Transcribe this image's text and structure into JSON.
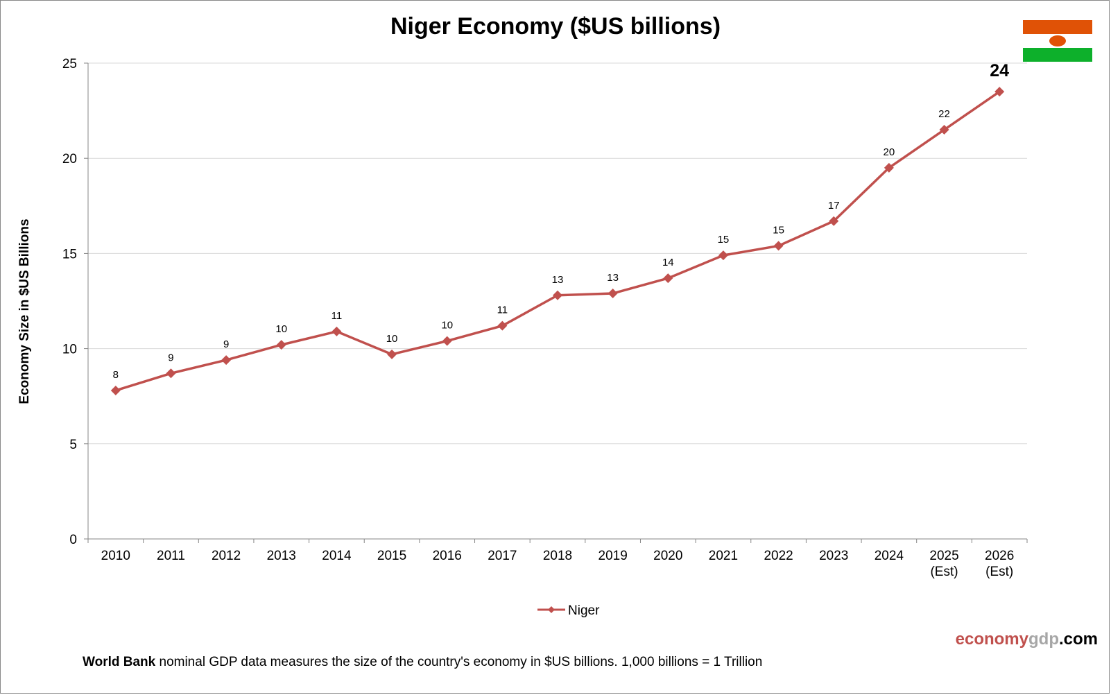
{
  "chart_data": {
    "type": "line",
    "title": "Niger Economy ($US billions)",
    "ylabel": "Economy Size in $US Billions",
    "xlabel": "",
    "ylim": [
      0,
      25
    ],
    "yticks": [
      0,
      5,
      10,
      15,
      20,
      25
    ],
    "grid": true,
    "legend_position": "bottom",
    "categories": [
      [
        "2010"
      ],
      [
        "2011"
      ],
      [
        "2012"
      ],
      [
        "2013"
      ],
      [
        "2014"
      ],
      [
        "2015"
      ],
      [
        "2016"
      ],
      [
        "2017"
      ],
      [
        "2018"
      ],
      [
        "2019"
      ],
      [
        "2020"
      ],
      [
        "2021"
      ],
      [
        "2022"
      ],
      [
        "2023"
      ],
      [
        "2024"
      ],
      [
        "2025",
        "(Est)"
      ],
      [
        "2026",
        "(Est)"
      ]
    ],
    "series": [
      {
        "name": "Niger",
        "color": "#c0504d",
        "marker": "diamond",
        "values": [
          7.8,
          8.7,
          9.4,
          10.2,
          10.9,
          9.7,
          10.4,
          11.2,
          12.8,
          12.9,
          13.7,
          14.9,
          15.4,
          16.7,
          19.5,
          21.5,
          23.5
        ],
        "data_labels": [
          "8",
          "9",
          "9",
          "10",
          "11",
          "10",
          "10",
          "11",
          "13",
          "13",
          "14",
          "15",
          "15",
          "17",
          "20",
          "22",
          "24"
        ]
      }
    ]
  },
  "flag": {
    "name": "niger-flag",
    "top_color": "#e05206",
    "middle_color": "#ffffff",
    "bottom_color": "#0db02b",
    "disc_color": "#e05206"
  },
  "brand": {
    "part1": "economy",
    "part2": "gdp",
    "part3": ".com",
    "color1": "#c0504d",
    "color2": "#a6a6a6",
    "color3": "#000000"
  },
  "footnote": {
    "bold": "World Bank",
    "text": " nominal GDP data measures the size of the country's economy in $US billions. 1,000 billions = 1 Trillion"
  }
}
